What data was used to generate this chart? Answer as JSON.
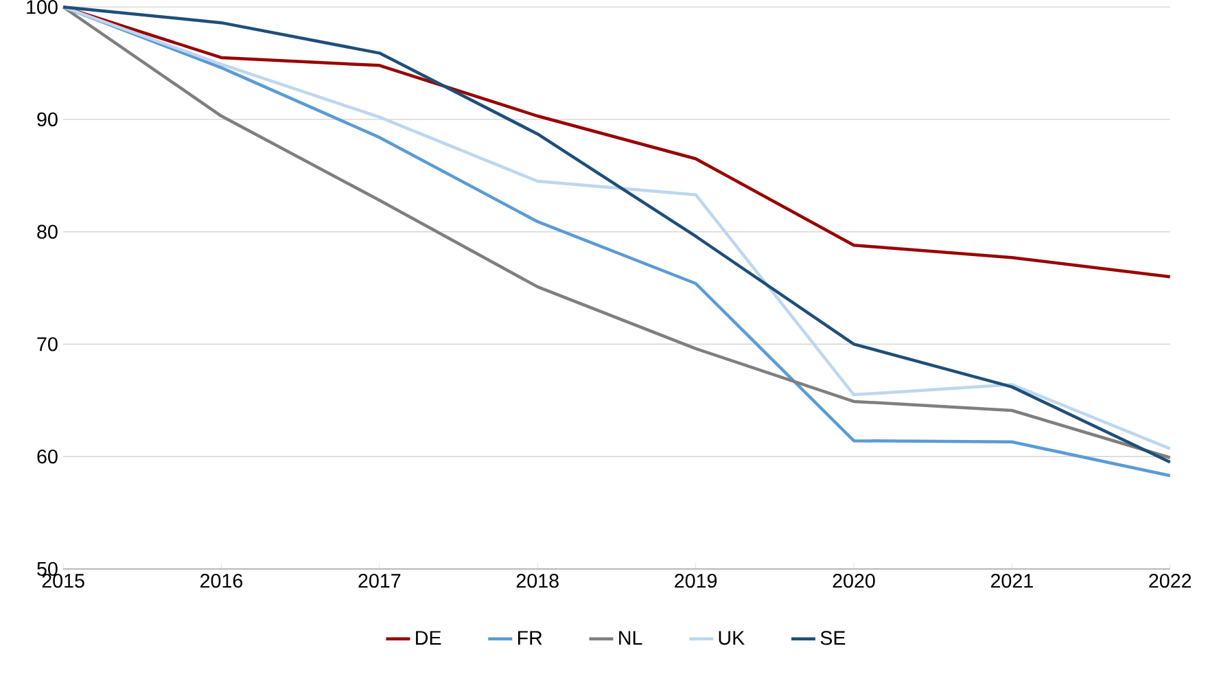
{
  "chart_data": {
    "type": "line",
    "x": [
      2015,
      2016,
      2017,
      2018,
      2019,
      2020,
      2021,
      2022
    ],
    "xlim": [
      2015,
      2022
    ],
    "xticks": [
      2015,
      2016,
      2017,
      2018,
      2019,
      2020,
      2021,
      2022
    ],
    "ylim": [
      50,
      100
    ],
    "yticks": [
      50,
      60,
      70,
      80,
      90,
      100
    ],
    "grid": "y",
    "legend": "bottom",
    "marker": "none",
    "line_style": "solid",
    "series": [
      {
        "name": "DE",
        "color": "#990000",
        "values": [
          100,
          95.5,
          94.8,
          90.3,
          86.5,
          78.8,
          77.7,
          76.0
        ]
      },
      {
        "name": "FR",
        "color": "#5b9bd5",
        "values": [
          100,
          94.6,
          88.4,
          80.9,
          75.4,
          61.4,
          61.3,
          58.3
        ]
      },
      {
        "name": "NL",
        "color": "#7f7f7f",
        "values": [
          100,
          90.3,
          82.8,
          75.1,
          69.6,
          64.9,
          64.1,
          59.9
        ]
      },
      {
        "name": "UK",
        "color": "#bdd7ee",
        "values": [
          100,
          94.9,
          90.2,
          84.5,
          83.3,
          65.5,
          66.4,
          60.7
        ]
      },
      {
        "name": "SE",
        "color": "#1f4e79",
        "values": [
          100,
          98.6,
          95.9,
          88.7,
          79.6,
          70.0,
          66.2,
          59.5
        ]
      }
    ]
  }
}
